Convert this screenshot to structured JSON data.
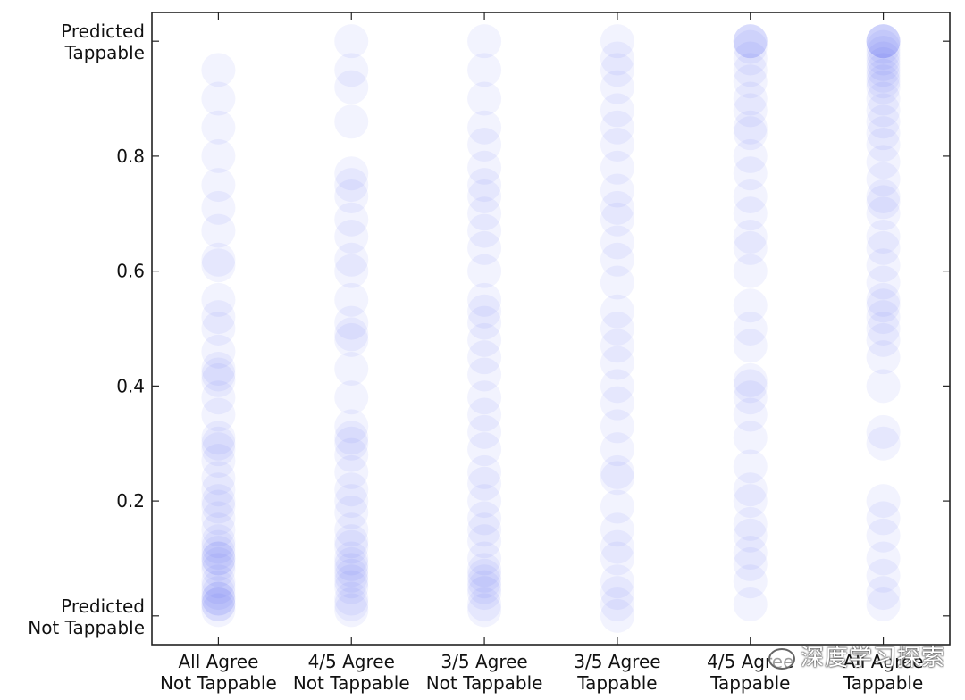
{
  "chart_data": {
    "type": "scatter",
    "title": "",
    "xlabel": "",
    "ylabel": "",
    "ylim": [
      -0.05,
      1.05
    ],
    "y_ticks": [
      0.2,
      0.4,
      0.6,
      0.8
    ],
    "y_extreme_labels": {
      "top": [
        "Predicted",
        "Tappable"
      ],
      "bottom": [
        "Predicted",
        "Not Tappable"
      ]
    },
    "grid": false,
    "legend": "none",
    "point_color": "#1f2ee8",
    "categories": [
      [
        "All Agree",
        "Not Tappable"
      ],
      [
        "4/5 Agree",
        "Not Tappable"
      ],
      [
        "3/5 Agree",
        "Not Tappable"
      ],
      [
        "3/5 Agree",
        "Tappable"
      ],
      [
        "4/5 Agree",
        "Tappable"
      ],
      [
        "All Agree",
        "Tappable"
      ]
    ],
    "series": [
      {
        "values": [
          0.01,
          0.02,
          0.02,
          0.03,
          0.03,
          0.04,
          0.05,
          0.06,
          0.08,
          0.09,
          0.1,
          0.1,
          0.11,
          0.12,
          0.13,
          0.15,
          0.17,
          0.19,
          0.2,
          0.22,
          0.24,
          0.27,
          0.29,
          0.3,
          0.31,
          0.35,
          0.38,
          0.41,
          0.42,
          0.43,
          0.46,
          0.5,
          0.52,
          0.55,
          0.61,
          0.62,
          0.67,
          0.71,
          0.75,
          0.8,
          0.85,
          0.9,
          0.95
        ]
      },
      {
        "values": [
          0.01,
          0.02,
          0.03,
          0.05,
          0.06,
          0.07,
          0.08,
          0.09,
          0.1,
          0.12,
          0.13,
          0.15,
          0.18,
          0.2,
          0.22,
          0.25,
          0.28,
          0.3,
          0.31,
          0.33,
          0.38,
          0.43,
          0.48,
          0.49,
          0.51,
          0.55,
          0.6,
          0.62,
          0.66,
          0.69,
          0.73,
          0.75,
          0.77,
          0.86,
          0.92,
          0.95,
          1.0
        ]
      },
      {
        "values": [
          0.01,
          0.02,
          0.04,
          0.05,
          0.06,
          0.07,
          0.08,
          0.1,
          0.13,
          0.15,
          0.17,
          0.2,
          0.23,
          0.25,
          0.29,
          0.32,
          0.35,
          0.38,
          0.42,
          0.45,
          0.48,
          0.51,
          0.53,
          0.55,
          0.6,
          0.64,
          0.67,
          0.7,
          0.73,
          0.75,
          0.78,
          0.82,
          0.85,
          0.9,
          0.95,
          1.0
        ]
      },
      {
        "values": [
          0.0,
          0.02,
          0.04,
          0.06,
          0.1,
          0.12,
          0.15,
          0.19,
          0.24,
          0.25,
          0.29,
          0.33,
          0.37,
          0.4,
          0.44,
          0.47,
          0.5,
          0.53,
          0.58,
          0.62,
          0.65,
          0.69,
          0.71,
          0.74,
          0.78,
          0.82,
          0.85,
          0.88,
          0.92,
          0.95,
          0.97,
          1.0
        ]
      },
      {
        "values": [
          0.02,
          0.06,
          0.09,
          0.11,
          0.14,
          0.16,
          0.2,
          0.22,
          0.26,
          0.31,
          0.35,
          0.38,
          0.4,
          0.41,
          0.47,
          0.5,
          0.54,
          0.6,
          0.64,
          0.66,
          0.7,
          0.73,
          0.77,
          0.8,
          0.84,
          0.85,
          0.88,
          0.9,
          0.93,
          0.95,
          0.97,
          0.99,
          1.0,
          1.0,
          1.0
        ]
      },
      {
        "values": [
          0.02,
          0.04,
          0.07,
          0.1,
          0.14,
          0.17,
          0.2,
          0.3,
          0.32,
          0.4,
          0.45,
          0.48,
          0.5,
          0.52,
          0.54,
          0.55,
          0.58,
          0.61,
          0.64,
          0.66,
          0.7,
          0.72,
          0.73,
          0.76,
          0.79,
          0.82,
          0.84,
          0.86,
          0.88,
          0.9,
          0.92,
          0.93,
          0.94,
          0.95,
          0.96,
          0.97,
          0.98,
          0.99,
          1.0,
          1.0,
          1.0,
          1.0
        ]
      }
    ]
  },
  "watermark": {
    "text": "深度学习探索",
    "icon": "wechat-icon"
  }
}
